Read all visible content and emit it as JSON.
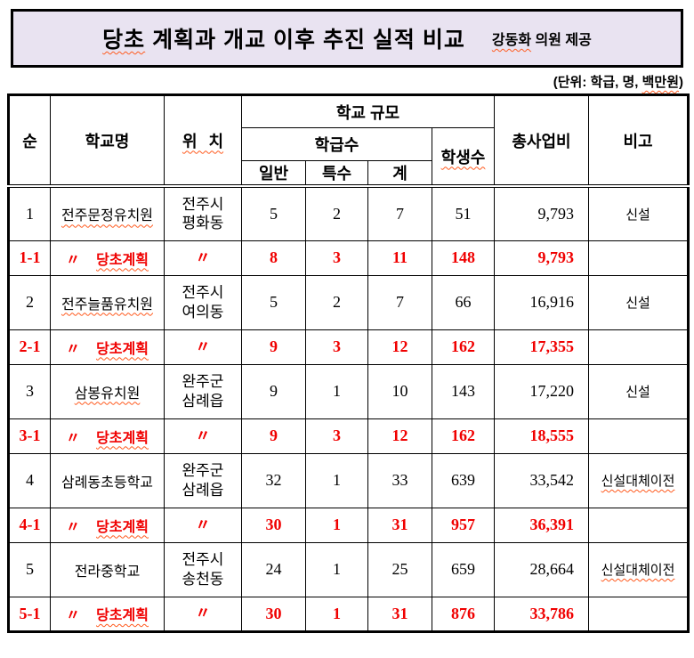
{
  "header": {
    "title_em": "당초",
    "title_rest": " 계획과 개교 이후 추진 실적 비교",
    "credit_em": "강동화",
    "credit_rest": " 의원 제공"
  },
  "unit_note": {
    "pre": "(단위: 학급, 명, ",
    "em": "백만원",
    "post": ")"
  },
  "table": {
    "ditto_mark": "〃",
    "head": {
      "no": "순",
      "school": "학교명",
      "location": "위 치",
      "scale": "학교 규모",
      "classes": "학급수",
      "students": "학생수",
      "general": "일반",
      "special": "특수",
      "sum": "계",
      "cost": "총사업비",
      "note": "비고"
    },
    "rows": [
      {
        "no": "1",
        "ditto": false,
        "school": "전주문정유치원",
        "school_wavy": true,
        "location": [
          "전주시",
          "평화동"
        ],
        "general": "5",
        "special": "2",
        "total": "7",
        "students": "51",
        "cost": "9,793",
        "note": "신설",
        "note_wavy": false,
        "plan": false
      },
      {
        "no": "1-1",
        "ditto": true,
        "school": "당초계획",
        "school_wavy": true,
        "location": [
          "〃"
        ],
        "general": "8",
        "special": "3",
        "total": "11",
        "students": "148",
        "cost": "9,793",
        "note": "",
        "note_wavy": false,
        "plan": true
      },
      {
        "no": "2",
        "ditto": false,
        "school": "전주늘품유치원",
        "school_wavy": true,
        "location": [
          "전주시",
          "여의동"
        ],
        "general": "5",
        "special": "2",
        "total": "7",
        "students": "66",
        "cost": "16,916",
        "note": "신설",
        "note_wavy": false,
        "plan": false
      },
      {
        "no": "2-1",
        "ditto": true,
        "school": "당초계획",
        "school_wavy": true,
        "location": [
          "〃"
        ],
        "general": "9",
        "special": "3",
        "total": "12",
        "students": "162",
        "cost": "17,355",
        "note": "",
        "note_wavy": false,
        "plan": true
      },
      {
        "no": "3",
        "ditto": false,
        "school": "삼봉유치원",
        "school_wavy": true,
        "location": [
          "완주군",
          "삼례읍"
        ],
        "general": "9",
        "special": "1",
        "total": "10",
        "students": "143",
        "cost": "17,220",
        "note": "신설",
        "note_wavy": false,
        "plan": false
      },
      {
        "no": "3-1",
        "ditto": true,
        "school": "당초계획",
        "school_wavy": true,
        "location": [
          "〃"
        ],
        "general": "9",
        "special": "3",
        "total": "12",
        "students": "162",
        "cost": "18,555",
        "note": "",
        "note_wavy": false,
        "plan": true
      },
      {
        "no": "4",
        "ditto": false,
        "school": "삼례동초등학교",
        "school_wavy": false,
        "location": [
          "완주군",
          "삼례읍"
        ],
        "general": "32",
        "special": "1",
        "total": "33",
        "students": "639",
        "cost": "33,542",
        "note": "신설대체이전",
        "note_wavy": true,
        "plan": false
      },
      {
        "no": "4-1",
        "ditto": true,
        "school": "당초계획",
        "school_wavy": true,
        "location": [
          "〃"
        ],
        "general": "30",
        "special": "1",
        "total": "31",
        "students": "957",
        "cost": "36,391",
        "note": "",
        "note_wavy": false,
        "plan": true
      },
      {
        "no": "5",
        "ditto": false,
        "school": "전라중학교",
        "school_wavy": false,
        "location": [
          "전주시",
          "송천동"
        ],
        "general": "24",
        "special": "1",
        "total": "25",
        "students": "659",
        "cost": "28,664",
        "note": "신설대체이전",
        "note_wavy": true,
        "plan": false
      },
      {
        "no": "5-1",
        "ditto": true,
        "school": "당초계획",
        "school_wavy": true,
        "location": [
          "〃"
        ],
        "general": "30",
        "special": "1",
        "total": "31",
        "students": "876",
        "cost": "33,786",
        "note": "",
        "note_wavy": false,
        "plan": true
      }
    ]
  },
  "colors": {
    "accent_red": "#f00000",
    "title_bg": "#e9e3f1",
    "wavy_underline": "#ff5a1e",
    "border": "#000000"
  }
}
